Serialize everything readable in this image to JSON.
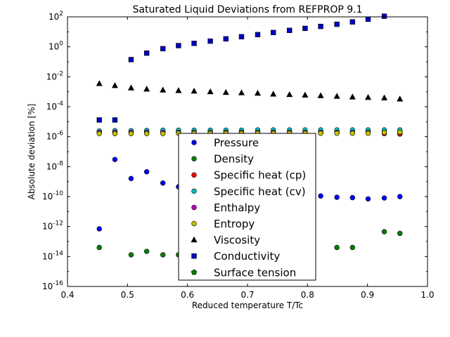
{
  "chart_data": {
    "type": "scatter",
    "title": "Saturated Liquid Deviations from REFPROP 9.1",
    "xlabel": "Reduced temperature T/Tc",
    "ylabel": "Absolute deviation [%]",
    "xlim": [
      0.4,
      1.0
    ],
    "ylim": [
      1e-16,
      100
    ],
    "yscale": "log",
    "x_ticks": [
      "0.4",
      "0.5",
      "0.6",
      "0.7",
      "0.8",
      "0.9",
      "1.0"
    ],
    "y_ticks": [
      {
        "base": "10",
        "exp": "2"
      },
      {
        "base": "10",
        "exp": "0"
      },
      {
        "base": "10",
        "exp": "-2"
      },
      {
        "base": "10",
        "exp": "-4"
      },
      {
        "base": "10",
        "exp": "-6"
      },
      {
        "base": "10",
        "exp": "-8"
      },
      {
        "base": "10",
        "exp": "-10"
      },
      {
        "base": "10",
        "exp": "-12"
      },
      {
        "base": "10",
        "exp": "-14"
      },
      {
        "base": "10",
        "exp": "-16"
      }
    ],
    "legend_position": "lower-center",
    "series": [
      {
        "name": "Pressure",
        "marker": "circle",
        "color": "#0000ff",
        "points": [
          [
            0.453,
            7e-13
          ],
          [
            0.479,
            3e-08
          ],
          [
            0.506,
            1.6e-09
          ],
          [
            0.532,
            4.5e-09
          ],
          [
            0.559,
            8e-10
          ],
          [
            0.585,
            4.5e-10
          ],
          [
            0.611,
            3e-10
          ],
          [
            0.638,
            2.4e-10
          ],
          [
            0.664,
            2e-10
          ],
          [
            0.69,
            1.8e-10
          ],
          [
            0.717,
            1.6e-10
          ],
          [
            0.743,
            1.4e-10
          ],
          [
            0.77,
            1.3e-10
          ],
          [
            0.796,
            1.2e-10
          ],
          [
            0.822,
            1.1e-10
          ],
          [
            0.849,
            9e-11
          ],
          [
            0.875,
            8.5e-11
          ],
          [
            0.901,
            7e-11
          ],
          [
            0.928,
            8e-11
          ],
          [
            0.954,
            1e-10
          ]
        ]
      },
      {
        "name": "Density",
        "marker": "circle",
        "color": "#008000",
        "points": [
          [
            0.453,
            4e-14
          ],
          [
            0.506,
            1.3e-14
          ],
          [
            0.532,
            2.2e-14
          ],
          [
            0.559,
            1.3e-14
          ],
          [
            0.585,
            1.3e-14
          ],
          [
            0.849,
            4e-14
          ],
          [
            0.875,
            4e-14
          ],
          [
            0.928,
            4.5e-13
          ],
          [
            0.954,
            3.5e-13
          ]
        ]
      },
      {
        "name": "Specific heat (cp)",
        "marker": "circle",
        "color": "#ff0000",
        "points": [
          [
            0.453,
            1.8e-06
          ],
          [
            0.479,
            1.8e-06
          ],
          [
            0.506,
            1.8e-06
          ],
          [
            0.532,
            1.8e-06
          ],
          [
            0.559,
            1.8e-06
          ],
          [
            0.585,
            1.8e-06
          ],
          [
            0.611,
            1.8e-06
          ],
          [
            0.638,
            1.8e-06
          ],
          [
            0.664,
            1.8e-06
          ],
          [
            0.69,
            1.8e-06
          ],
          [
            0.717,
            1.8e-06
          ],
          [
            0.743,
            1.8e-06
          ],
          [
            0.77,
            1.8e-06
          ],
          [
            0.796,
            1.8e-06
          ],
          [
            0.822,
            1.8e-06
          ],
          [
            0.849,
            1.8e-06
          ],
          [
            0.875,
            1.8e-06
          ],
          [
            0.901,
            1.8e-06
          ],
          [
            0.928,
            1.6e-06
          ],
          [
            0.954,
            1.5e-06
          ]
        ]
      },
      {
        "name": "Specific heat (cv)",
        "marker": "circle",
        "color": "#00bfbf",
        "points": [
          [
            0.453,
            2.4e-06
          ],
          [
            0.479,
            2.5e-06
          ],
          [
            0.506,
            2.5e-06
          ],
          [
            0.532,
            2.6e-06
          ],
          [
            0.559,
            2.7e-06
          ],
          [
            0.585,
            2.7e-06
          ],
          [
            0.611,
            2.7e-06
          ],
          [
            0.638,
            2.7e-06
          ],
          [
            0.664,
            2.7e-06
          ],
          [
            0.69,
            2.7e-06
          ],
          [
            0.717,
            2.8e-06
          ],
          [
            0.743,
            2.8e-06
          ],
          [
            0.77,
            2.8e-06
          ],
          [
            0.796,
            2.8e-06
          ],
          [
            0.822,
            2.8e-06
          ],
          [
            0.849,
            2.8e-06
          ],
          [
            0.875,
            2.8e-06
          ],
          [
            0.901,
            2.8e-06
          ],
          [
            0.928,
            2.8e-06
          ],
          [
            0.954,
            2.8e-06
          ]
        ]
      },
      {
        "name": "Enthalpy",
        "marker": "circle",
        "color": "#bf00bf",
        "points": [
          [
            0.453,
            1.9e-06
          ],
          [
            0.479,
            1.9e-06
          ],
          [
            0.506,
            1.9e-06
          ],
          [
            0.532,
            1.9e-06
          ],
          [
            0.559,
            1.9e-06
          ],
          [
            0.585,
            1.9e-06
          ],
          [
            0.611,
            1.9e-06
          ],
          [
            0.638,
            1.9e-06
          ],
          [
            0.664,
            1.9e-06
          ],
          [
            0.69,
            1.9e-06
          ],
          [
            0.717,
            1.9e-06
          ],
          [
            0.743,
            1.9e-06
          ],
          [
            0.77,
            1.9e-06
          ],
          [
            0.796,
            1.9e-06
          ],
          [
            0.822,
            1.9e-06
          ],
          [
            0.849,
            1.9e-06
          ],
          [
            0.875,
            1.9e-06
          ],
          [
            0.901,
            1.9e-06
          ],
          [
            0.928,
            1.9e-06
          ],
          [
            0.954,
            1.9e-06
          ]
        ]
      },
      {
        "name": "Entropy",
        "marker": "circle",
        "color": "#bfbf00",
        "points": [
          [
            0.453,
            1.6e-06
          ],
          [
            0.479,
            1.6e-06
          ],
          [
            0.506,
            1.6e-06
          ],
          [
            0.532,
            1.6e-06
          ],
          [
            0.559,
            1.6e-06
          ],
          [
            0.585,
            1.7e-06
          ],
          [
            0.611,
            1.7e-06
          ],
          [
            0.638,
            1.7e-06
          ],
          [
            0.664,
            1.7e-06
          ],
          [
            0.69,
            1.7e-06
          ],
          [
            0.717,
            1.7e-06
          ],
          [
            0.743,
            1.7e-06
          ],
          [
            0.77,
            1.7e-06
          ],
          [
            0.796,
            1.7e-06
          ],
          [
            0.822,
            1.7e-06
          ],
          [
            0.849,
            1.7e-06
          ],
          [
            0.875,
            1.7e-06
          ],
          [
            0.901,
            1.7e-06
          ],
          [
            0.928,
            1.9e-06
          ],
          [
            0.954,
            2e-06
          ]
        ]
      },
      {
        "name": "Viscosity",
        "marker": "triangle",
        "color": "#000000",
        "points": [
          [
            0.453,
            0.0035
          ],
          [
            0.479,
            0.0026
          ],
          [
            0.506,
            0.0018
          ],
          [
            0.532,
            0.0015
          ],
          [
            0.559,
            0.0013
          ],
          [
            0.585,
            0.0012
          ],
          [
            0.611,
            0.0011
          ],
          [
            0.638,
            0.001
          ],
          [
            0.664,
            0.0009
          ],
          [
            0.69,
            0.00085
          ],
          [
            0.717,
            0.0008
          ],
          [
            0.743,
            0.0007
          ],
          [
            0.77,
            0.00065
          ],
          [
            0.796,
            0.0006
          ],
          [
            0.822,
            0.00055
          ],
          [
            0.849,
            0.0005
          ],
          [
            0.875,
            0.00045
          ],
          [
            0.901,
            0.00042
          ],
          [
            0.928,
            0.00039
          ],
          [
            0.954,
            0.00033
          ]
        ]
      },
      {
        "name": "Conductivity",
        "marker": "square",
        "color": "#0000bf",
        "points": [
          [
            0.453,
            1.3e-05
          ],
          [
            0.479,
            1.3e-05
          ],
          [
            0.506,
            0.14
          ],
          [
            0.532,
            0.38
          ],
          [
            0.559,
            0.75
          ],
          [
            0.585,
            1.2
          ],
          [
            0.611,
            1.7
          ],
          [
            0.638,
            2.4
          ],
          [
            0.664,
            3.4
          ],
          [
            0.69,
            4.7
          ],
          [
            0.717,
            6.5
          ],
          [
            0.743,
            9
          ],
          [
            0.77,
            12.5
          ],
          [
            0.796,
            17
          ],
          [
            0.822,
            23
          ],
          [
            0.849,
            32
          ],
          [
            0.875,
            46
          ],
          [
            0.901,
            70
          ],
          [
            0.928,
            110
          ]
        ]
      },
      {
        "name": "Surface tension",
        "marker": "pentagon",
        "color": "#007f00",
        "points": []
      }
    ]
  }
}
